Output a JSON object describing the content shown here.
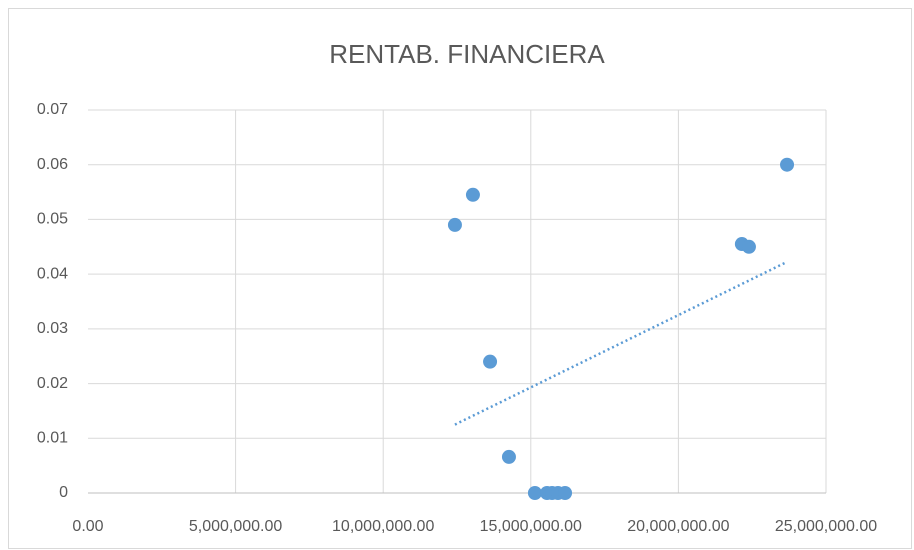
{
  "chart_data": {
    "type": "scatter",
    "title": "RENTAB. FINANCIERA",
    "series": [
      {
        "color": "#5b9bd5",
        "x": [
          12430000,
          13040000,
          13620000,
          14260000,
          15140000,
          15550000,
          15720000,
          15920000,
          16160000,
          22150000,
          22390000,
          23680000
        ],
        "values": [
          0.049,
          0.0545,
          0.024,
          0.0066,
          0,
          0,
          0,
          0,
          0,
          0.0455,
          0.045,
          0.06
        ]
      }
    ],
    "trendline": "linear",
    "xlim": [
      0,
      25000000
    ],
    "xticks": [
      {
        "value": 0,
        "label": "0.00"
      },
      {
        "value": 5000000,
        "label": "5,000,000.00"
      },
      {
        "value": 10000000,
        "label": "10,000,000.00"
      },
      {
        "value": 15000000,
        "label": "15,000,000.00"
      },
      {
        "value": 20000000,
        "label": "20,000,000.00"
      },
      {
        "value": 25000000,
        "label": "25,000,000.00"
      }
    ],
    "ylim": [
      0,
      0.07
    ],
    "yticks": [
      0,
      0.01,
      0.02,
      0.03,
      0.04,
      0.05,
      0.06,
      0.07
    ],
    "grid": true
  }
}
